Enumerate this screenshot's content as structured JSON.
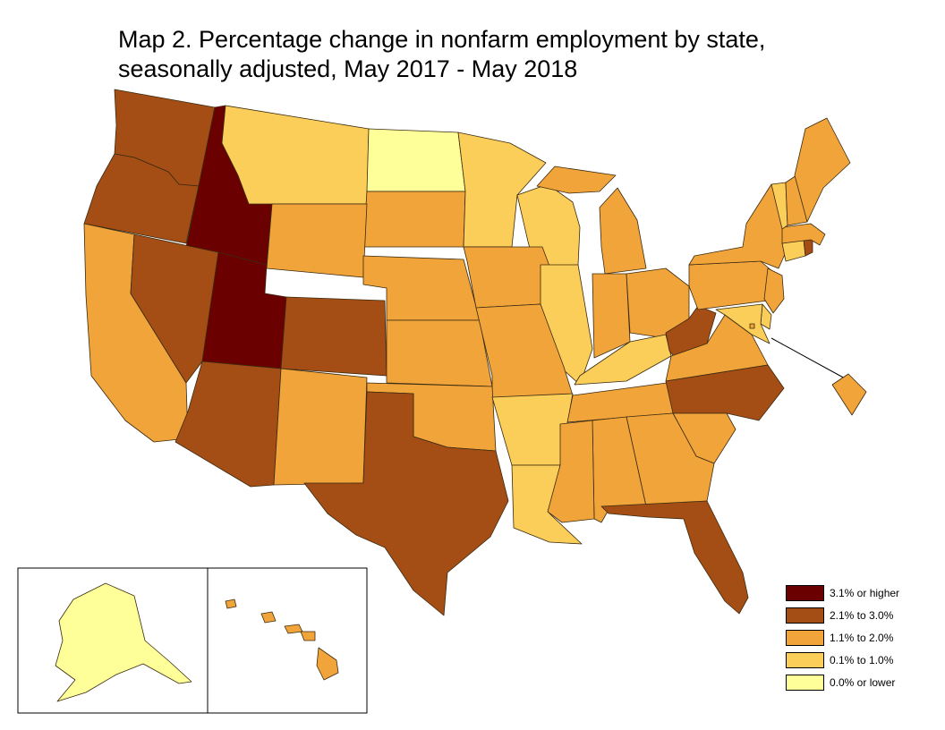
{
  "title": {
    "line1": "Map 2. Percentage change in nonfarm employment by state,",
    "line2": "seasonally adjusted, May 2017 - May 2018"
  },
  "colors": {
    "c1": "#6b0000",
    "c2": "#a44e15",
    "c3": "#f0a43a",
    "c4": "#fbcd59",
    "c5": "#ffff99"
  },
  "legend": [
    {
      "label": "3.1% or higher",
      "color": "#6b0000"
    },
    {
      "label": "2.1% to  3.0%",
      "color": "#a44e15"
    },
    {
      "label": "1.1% to 2.0%",
      "color": "#f0a43a"
    },
    {
      "label": "0.1% to 1.0%",
      "color": "#fbcd59"
    },
    {
      "label": "0.0% or lower",
      "color": "#ffff99"
    }
  ],
  "states": {
    "WA": "c2",
    "OR": "c2",
    "ID": "c1",
    "MT": "c4",
    "ND": "c5",
    "MN": "c4",
    "WI": "c4",
    "MI": "c3",
    "CA": "c3",
    "NV": "c2",
    "UT": "c1",
    "WY": "c3",
    "SD": "c3",
    "IA": "c3",
    "IL": "c4",
    "IN": "c3",
    "OH": "c3",
    "AZ": "c2",
    "CO": "c2",
    "NM": "c3",
    "NE": "c3",
    "KS": "c3",
    "MO": "c3",
    "KY": "c4",
    "WV": "c2",
    "VA": "c3",
    "OK": "c3",
    "AR": "c4",
    "TN": "c3",
    "NC": "c2",
    "TX": "c2",
    "LA": "c4",
    "MS": "c3",
    "AL": "c3",
    "GA": "c3",
    "SC": "c3",
    "FL": "c2",
    "PA": "c3",
    "NY": "c3",
    "NJ": "c3",
    "DE": "c4",
    "MD": "c4",
    "DC": "c3",
    "CT": "c4",
    "RI": "c2",
    "MA": "c3",
    "VT": "c4",
    "NH": "c3",
    "ME": "c3",
    "AK": "c5",
    "HI": "c3"
  }
}
